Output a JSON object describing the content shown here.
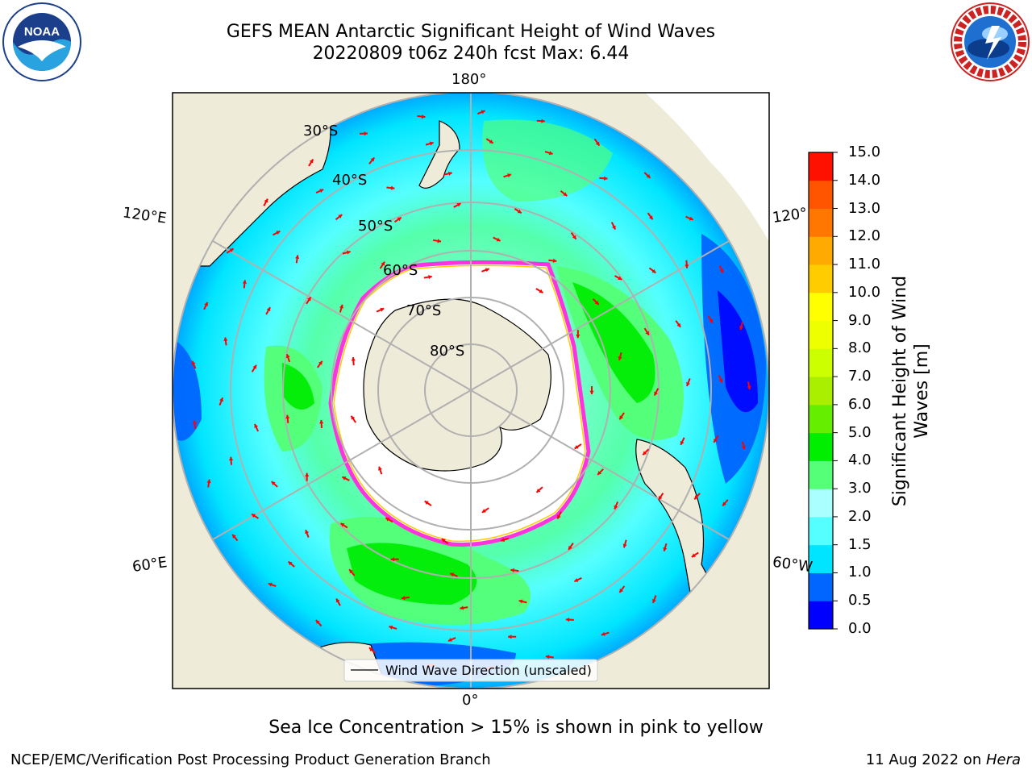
{
  "title": {
    "line1": "GEFS MEAN Antarctic Significant Height of Wind Waves",
    "line2": "20220809 t06z 240h fcst   Max: 6.44"
  },
  "map": {
    "projection": "south polar stereographic",
    "longitude_labels": [
      "180°",
      "120°E",
      "120°",
      "60°E",
      "60°W",
      "0°"
    ],
    "latitude_labels": [
      "30°S",
      "40°S",
      "50°S",
      "60°S",
      "70°S",
      "80°S"
    ],
    "legend": "Wind Wave Direction (unscaled)",
    "max_value": 6.44,
    "colors": {
      "land": "#eeebd8",
      "ice": "#ffffff",
      "ice_edge": [
        "#ff33dd",
        "#ffcc00"
      ],
      "arrows": "#ff0000",
      "gridlines": "#b0b0b0"
    }
  },
  "colorbar": {
    "label": "Significant Height of Wind Waves [m]",
    "ticks": [
      "0.0",
      "0.5",
      "1.0",
      "1.5",
      "2.0",
      "3.0",
      "4.0",
      "5.0",
      "6.0",
      "7.0",
      "8.0",
      "9.0",
      "10.0",
      "11.0",
      "12.0",
      "13.0",
      "14.0",
      "15.0"
    ],
    "colors": [
      "#0000ff",
      "#0066ff",
      "#00e5ff",
      "#55ffff",
      "#aaffff",
      "#55ff77",
      "#00ee00",
      "#66ee00",
      "#aaee00",
      "#ccff00",
      "#eeff00",
      "#ffff00",
      "#ffcc00",
      "#ffaa00",
      "#ff7700",
      "#ff5500",
      "#ff1100"
    ]
  },
  "footnote": "Sea Ice Concentration > 15% is shown in pink to yellow",
  "credit": "NCEP/EMC/Verification Post Processing Product Generation Branch",
  "date": {
    "text": "11 Aug 2022 on ",
    "host": "Hera"
  }
}
